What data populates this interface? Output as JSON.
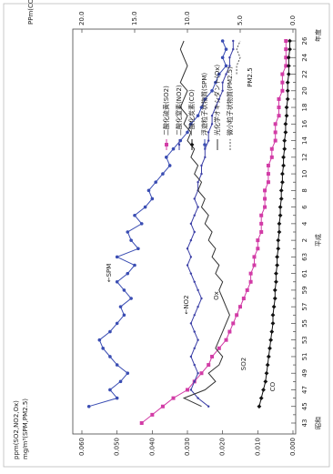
{
  "chart_data": {
    "type": "line",
    "y_axis_label": "ppm(SO2,NO2,Ox)",
    "y_axis_label_2": "mg/m³(SPM,PM2.5)",
    "y2_axis_label": "PPm(CO)",
    "x_axis_label": "年度",
    "annotations": [
      "昭和",
      "平成",
      "←SPM",
      "←NO2",
      "Ox",
      "SO2",
      "CO",
      "PM2.5"
    ],
    "categories": [
      "43",
      null,
      "45",
      null,
      "47",
      null,
      "49",
      null,
      "51",
      null,
      "53",
      null,
      "55",
      null,
      "57",
      null,
      "59",
      null,
      "61",
      null,
      "63",
      null,
      "2",
      null,
      "4",
      null,
      "6",
      null,
      "8",
      null,
      "10",
      null,
      "12",
      null,
      "14",
      null,
      "16",
      null,
      "18",
      null,
      "20",
      null,
      "22",
      null,
      "24",
      null,
      "26"
    ],
    "ylim": [
      0,
      0.06
    ],
    "yticks": [
      {
        "value": 0,
        "label": "0.000"
      },
      {
        "value": 0.01,
        "label": "0.010"
      },
      {
        "value": 0.02,
        "label": "0.020"
      },
      {
        "value": 0.03,
        "label": "0.030"
      },
      {
        "value": 0.04,
        "label": "0.040"
      },
      {
        "value": 0.05,
        "label": "0.050"
      },
      {
        "value": 0.06,
        "label": "0.060"
      }
    ],
    "y2lim": [
      0,
      20
    ],
    "y2ticks": [
      {
        "value": 0,
        "label": "0.0"
      },
      {
        "value": 5,
        "label": "5.0"
      },
      {
        "value": 10,
        "label": "10.0"
      },
      {
        "value": 15,
        "label": "15.0"
      },
      {
        "value": 20,
        "label": "20.0"
      }
    ],
    "grid": false,
    "legend": "upper right",
    "series": [
      {
        "name": "二酸化硫黄(SO2)",
        "color": "#d23ca6",
        "marker": "square",
        "values": [
          0.043,
          0.04,
          0.037,
          0.034,
          0.03,
          0.028,
          0.026,
          0.024,
          0.023,
          0.021,
          0.019,
          0.018,
          0.017,
          0.016,
          0.015,
          0.014,
          0.013,
          0.012,
          0.012,
          0.011,
          0.011,
          0.01,
          0.01,
          0.009,
          0.009,
          0.009,
          0.008,
          0.008,
          0.008,
          0.007,
          0.007,
          0.007,
          0.006,
          0.006,
          0.005,
          0.005,
          0.005,
          0.004,
          0.004,
          0.004,
          0.003,
          0.003,
          0.003,
          0.002,
          0.002,
          0.002,
          0.002
        ]
      },
      {
        "name": "二酸化窒素(NO2)",
        "color": "#3b3fa6",
        "marker": "dot",
        "values": [
          null,
          null,
          0.024,
          0.027,
          0.029,
          0.028,
          0.027,
          0.028,
          0.029,
          0.028,
          0.027,
          0.028,
          0.029,
          0.028,
          0.027,
          0.026,
          0.027,
          0.028,
          0.029,
          0.03,
          0.029,
          0.03,
          0.029,
          0.028,
          0.029,
          0.028,
          0.027,
          0.028,
          0.027,
          0.027,
          0.026,
          0.026,
          0.025,
          0.025,
          0.024,
          0.024,
          0.023,
          0.023,
          0.022,
          0.021,
          0.02,
          0.02,
          0.019,
          0.018,
          0.018,
          0.017,
          0.017
        ]
      },
      {
        "name": "一酸化炭素(CO)",
        "color": "#111111",
        "marker": "diamond",
        "axis": "y2",
        "values": [
          null,
          null,
          3.2,
          3.0,
          2.8,
          2.6,
          2.5,
          2.4,
          2.3,
          2.2,
          2.1,
          2.0,
          1.9,
          1.9,
          1.8,
          1.7,
          1.7,
          1.6,
          1.6,
          1.5,
          1.5,
          1.4,
          1.4,
          1.3,
          1.3,
          1.2,
          1.2,
          1.1,
          1.1,
          1.0,
          1.0,
          0.9,
          0.9,
          0.8,
          0.8,
          0.7,
          0.7,
          0.6,
          0.6,
          0.5,
          0.5,
          0.5,
          0.4,
          0.4,
          0.4,
          0.3,
          0.3
        ]
      },
      {
        "name": "浮遊粒子状物質(SPM)",
        "color": "#3a4db3",
        "marker": "circle",
        "values": [
          null,
          null,
          0.058,
          0.05,
          0.052,
          0.049,
          0.047,
          0.05,
          0.052,
          0.054,
          0.055,
          0.052,
          0.05,
          0.048,
          0.049,
          0.046,
          0.048,
          0.05,
          0.047,
          0.045,
          0.05,
          0.044,
          0.046,
          0.047,
          0.043,
          0.045,
          0.042,
          0.04,
          0.041,
          0.039,
          0.037,
          0.035,
          0.036,
          0.034,
          0.032,
          0.03,
          0.029,
          0.027,
          0.026,
          0.025,
          0.023,
          0.022,
          0.021,
          0.019,
          0.02,
          0.019,
          0.02
        ]
      },
      {
        "name": "光化学オキシダント(Ox)",
        "color": "#333333",
        "marker": "none",
        "values": [
          null,
          null,
          0.026,
          0.031,
          0.025,
          0.022,
          0.024,
          0.021,
          0.02,
          0.022,
          0.021,
          0.02,
          0.019,
          0.018,
          0.019,
          0.02,
          0.021,
          0.02,
          0.022,
          0.021,
          0.023,
          0.022,
          0.024,
          0.023,
          0.025,
          0.024,
          0.026,
          0.025,
          0.027,
          0.026,
          0.028,
          0.027,
          0.029,
          0.028,
          0.03,
          0.029,
          0.031,
          0.03,
          0.032,
          0.031,
          0.03,
          0.032,
          0.031,
          0.03,
          0.031,
          0.032,
          0.031
        ]
      },
      {
        "name": "微小粒子状物質(PM2.5)",
        "color": "#555555",
        "marker": "none",
        "values": [
          null,
          null,
          null,
          null,
          null,
          null,
          null,
          null,
          null,
          null,
          null,
          null,
          null,
          null,
          null,
          null,
          null,
          null,
          null,
          null,
          null,
          null,
          null,
          null,
          null,
          null,
          null,
          null,
          null,
          null,
          null,
          null,
          null,
          null,
          null,
          null,
          null,
          null,
          null,
          null,
          null,
          null,
          0.016,
          0.016,
          0.015,
          0.016,
          0.015
        ]
      }
    ]
  }
}
